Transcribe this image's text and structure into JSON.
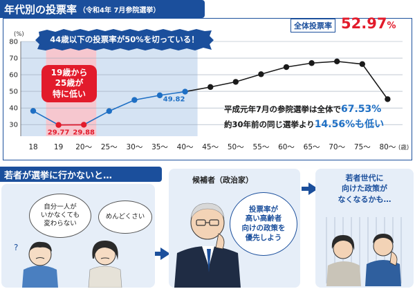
{
  "header": {
    "title": "年代別の投票率",
    "subtitle": "（令和4年  7月参院選挙）"
  },
  "overall": {
    "label": "全体投票率",
    "value": "52.97",
    "unit": "%"
  },
  "banner": "44歳以下の投票率が50%を切っている！",
  "callout": [
    "19歳から",
    "25歳が",
    "特に低い"
  ],
  "notes": {
    "line1_text": "平成元年7月の参院選挙は全体で",
    "line1_value": "67.53%",
    "line2_text": "約30年前の同じ選挙より",
    "line2_value": "14.56%も低い"
  },
  "chart_data": {
    "type": "line",
    "title": "年代別の投票率",
    "xlabel": "(歳)",
    "ylabel": "(%)",
    "ylim": [
      23,
      80
    ],
    "yticks": [
      30,
      40,
      50,
      60,
      70,
      80
    ],
    "grid": true,
    "categories": [
      "18",
      "19",
      "20〜",
      "25〜",
      "30〜",
      "35〜",
      "40〜",
      "45〜",
      "50〜",
      "55〜",
      "60〜",
      "65〜",
      "70〜",
      "75〜",
      "80〜"
    ],
    "values": [
      38.2,
      29.77,
      29.88,
      38.1,
      44.8,
      47.6,
      49.82,
      52.6,
      55.7,
      60.3,
      64.6,
      67.0,
      68.0,
      66.4,
      45.3
    ],
    "data_labels": {
      "1": "29.77",
      "2": "29.88",
      "6": "49.82"
    },
    "highlight_low": [
      1,
      2
    ],
    "highlight_under50_until": 6,
    "colors": {
      "young": "#1e6fc4",
      "old": "#1a1a1a",
      "low": "#e21b2b",
      "shade_blue": "#d5e3f3",
      "shade_pink": "#f6c7cf"
    }
  },
  "section2": {
    "title": "若者が選挙に行かないと…",
    "youth_bubbles": [
      [
        "自分一人が",
        "いかなくても",
        "変わらない"
      ],
      [
        "めんどくさい"
      ]
    ],
    "candidate_label": "候補者（政治家）",
    "candidate_bubble": [
      "投票率が",
      "高い高齢者",
      "向けの政策を",
      "優先しよう"
    ],
    "result_text": [
      "若者世代に",
      "向けた政策が",
      "なくなるかも…"
    ]
  }
}
